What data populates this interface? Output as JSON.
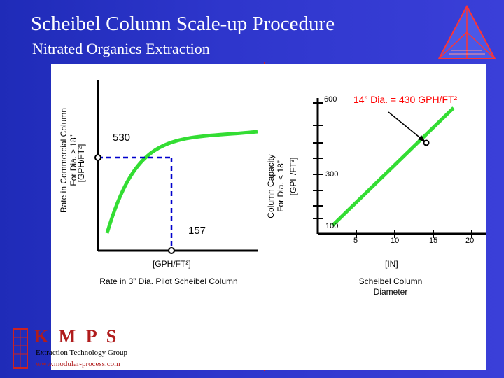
{
  "slide": {
    "title": "Scheibel Column Scale-up Procedure",
    "subtitle": "Nitrated Organics Extraction"
  },
  "left_chart": {
    "y_label_line1": "Rate in Commercial Column",
    "y_label_line2": "For Dia. ≥ 18”",
    "y_label_line3": "[GPH/FT²]",
    "x_unit": "[GPH/FT²]",
    "x_caption": "Rate in 3” Dia. Pilot Scheibel Column",
    "point_commercial": "530",
    "point_pilot": "157"
  },
  "right_chart": {
    "y_label_line1": "Column Capacity",
    "y_label_line2": "For Dia. < 18”",
    "y_label_line3": "[GPH/FT²]",
    "y_ticks": [
      "600",
      "300",
      "100"
    ],
    "x_ticks": [
      "5",
      "10",
      "15",
      "20"
    ],
    "x_unit": "[IN]",
    "x_caption": "Scheibel Column Diameter",
    "annotation": "14” Dia. = 430 GPH/FT²"
  },
  "logo": {
    "brand": "K M P S",
    "group": "Extraction Technology Group",
    "url": "www.modular-process.com"
  },
  "colors": {
    "background": "#2e36cc",
    "curve": "#33dd33",
    "dashed": "#0000cc",
    "accent": "#ff0000"
  }
}
